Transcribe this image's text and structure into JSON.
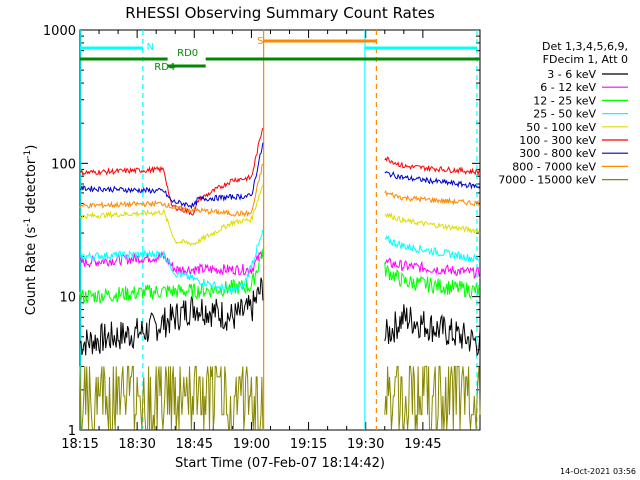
{
  "chart_data": {
    "type": "line",
    "title": "RHESSI Observing Summary Count Rates",
    "xlabel": "Start Time (07-Feb-07 18:14:42)",
    "ylabel_main": "Count Rate (s",
    "ylabel_sup1": "-1",
    "ylabel_mid": " detector",
    "ylabel_sup2": "-1",
    "ylabel_end": ")",
    "y_scale": "log",
    "ylim": [
      1,
      1000
    ],
    "xlim_minutes": [
      0,
      105
    ],
    "x_ticks": [
      {
        "t": 0,
        "label": "18:15"
      },
      {
        "t": 15,
        "label": "18:30"
      },
      {
        "t": 30,
        "label": "18:45"
      },
      {
        "t": 45,
        "label": "19:00"
      },
      {
        "t": 60,
        "label": "19:15"
      },
      {
        "t": 75,
        "label": "19:30"
      },
      {
        "t": 90,
        "label": "19:45"
      }
    ],
    "y_ticks": [
      {
        "v": 1,
        "label": "1"
      },
      {
        "v": 10,
        "label": "10"
      },
      {
        "v": 100,
        "label": "100"
      },
      {
        "v": 1000,
        "label": "1000"
      }
    ],
    "legend_header": [
      "Det 1,3,4,5,6,9,",
      "FDecim 1, Att 0"
    ],
    "series": [
      {
        "name": "3 - 6 keV",
        "color": "#000000",
        "pre": [
          [
            0,
            4.5
          ],
          [
            17,
            5.5
          ],
          [
            25,
            7
          ],
          [
            30,
            8.5
          ],
          [
            40,
            7
          ],
          [
            45,
            8
          ],
          [
            48,
            12
          ]
        ],
        "post": [
          [
            80,
            5
          ],
          [
            85,
            7
          ],
          [
            105,
            4.5
          ]
        ],
        "noise": 0.12
      },
      {
        "name": "6 - 12 keV",
        "color": "#ff00ff",
        "pre": [
          [
            0,
            18
          ],
          [
            22,
            20
          ],
          [
            25,
            16
          ],
          [
            40,
            16
          ],
          [
            45,
            16
          ],
          [
            48,
            22
          ]
        ],
        "post": [
          [
            80,
            18
          ],
          [
            85,
            17
          ],
          [
            105,
            15
          ]
        ],
        "noise": 0.04
      },
      {
        "name": "12 - 25 keV",
        "color": "#00ff00",
        "pre": [
          [
            0,
            10
          ],
          [
            22,
            11
          ],
          [
            30,
            11
          ],
          [
            45,
            12
          ],
          [
            48,
            22
          ]
        ],
        "post": [
          [
            80,
            16
          ],
          [
            85,
            13
          ],
          [
            105,
            11
          ]
        ],
        "noise": 0.06
      },
      {
        "name": "25 - 50 keV",
        "color": "#00ffff",
        "pre": [
          [
            0,
            20
          ],
          [
            22,
            21
          ],
          [
            25,
            15
          ],
          [
            40,
            11
          ],
          [
            43,
            12
          ],
          [
            48,
            30
          ]
        ],
        "post": [
          [
            80,
            27
          ],
          [
            85,
            24
          ],
          [
            105,
            19
          ]
        ],
        "noise": 0.03
      },
      {
        "name": "50 - 100 keV",
        "color": "#dddd00",
        "pre": [
          [
            0,
            40
          ],
          [
            22,
            43
          ],
          [
            25,
            26
          ],
          [
            30,
            25
          ],
          [
            31,
            26
          ],
          [
            40,
            36
          ],
          [
            45,
            38
          ],
          [
            48,
            70
          ]
        ],
        "post": [
          [
            80,
            42
          ],
          [
            85,
            37
          ],
          [
            105,
            31
          ]
        ],
        "noise": 0.02
      },
      {
        "name": "100 - 300 keV",
        "color": "#ff0000",
        "pre": [
          [
            0,
            85
          ],
          [
            22,
            90
          ],
          [
            24,
            48
          ],
          [
            30,
            42
          ],
          [
            31,
            53
          ],
          [
            40,
            75
          ],
          [
            45,
            78
          ],
          [
            48,
            190
          ]
        ],
        "post": [
          [
            80,
            110
          ],
          [
            85,
            95
          ],
          [
            105,
            86
          ]
        ],
        "noise": 0.02
      },
      {
        "name": "300 - 800 keV",
        "color": "#0000cc",
        "pre": [
          [
            0,
            65
          ],
          [
            22,
            62
          ],
          [
            24,
            52
          ],
          [
            30,
            48
          ],
          [
            31,
            54
          ],
          [
            45,
            57
          ],
          [
            48,
            140
          ]
        ],
        "post": [
          [
            80,
            85
          ],
          [
            85,
            78
          ],
          [
            105,
            67
          ]
        ],
        "noise": 0.02
      },
      {
        "name": "800 - 7000 keV",
        "color": "#ff8800",
        "pre": [
          [
            0,
            48
          ],
          [
            22,
            50
          ],
          [
            25,
            46
          ],
          [
            40,
            42
          ],
          [
            45,
            42
          ],
          [
            48,
            100
          ]
        ],
        "post": [
          [
            80,
            60
          ],
          [
            85,
            55
          ],
          [
            105,
            50
          ]
        ],
        "noise": 0.02
      },
      {
        "name": "7000 - 15000 keV",
        "color": "#888800",
        "pre": [
          [
            0,
            1.5
          ],
          [
            48,
            1.5
          ]
        ],
        "post": [
          [
            80,
            1.5
          ],
          [
            85,
            1.5
          ],
          [
            105,
            1.5
          ]
        ],
        "noise": 0.4
      }
    ],
    "flags": [
      {
        "label": "N",
        "color": "#00ffff",
        "level": 4
      },
      {
        "label": "S",
        "color": "#ff8800",
        "level": 1
      },
      {
        "label": "RD0",
        "color": "#008800",
        "level": 5
      },
      {
        "label": "RD4",
        "color": "#008800",
        "level": 5
      }
    ],
    "timestamp": "14-Oct-2021 03:56"
  }
}
